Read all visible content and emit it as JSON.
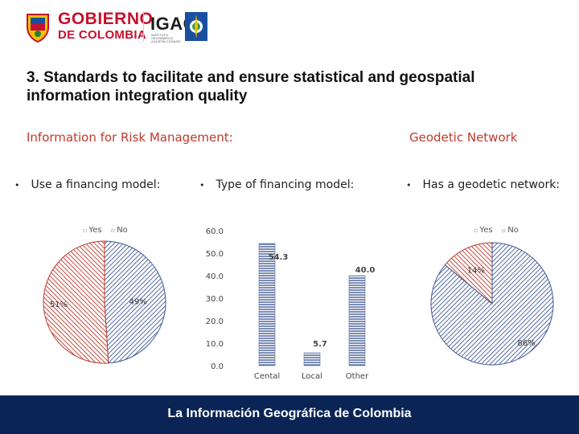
{
  "header": {
    "gobierno_line1": "GOBIERNO",
    "gobierno_line2": "DE COLOMBIA",
    "igac": "IGAC",
    "igac_subtitle": "INSTITUTO GEOGRÁFICO AGUSTÍN CODAZZI"
  },
  "title": "3. Standards to facilitate and ensure statistical and geospatial information integration quality",
  "sections": {
    "risk_heading": "Information for  Risk Management:",
    "geodetic_heading": "Geodetic Network"
  },
  "bullets": {
    "financing_model": "Use a  financing model:",
    "type_financing": "Type of financing model:",
    "geodetic_network": "Has a geodetic network:"
  },
  "legend": {
    "yes": "Yes",
    "no": "No"
  },
  "colors": {
    "yes_fill": "#3f5a99",
    "no_fill": "#c0392b",
    "bar_fill": "#5a6f9e",
    "footer": "#0b2456",
    "heading": "#c0392b"
  },
  "chart_data": [
    {
      "type": "pie",
      "legend": [
        "Yes",
        "No"
      ],
      "slices": [
        {
          "label": "Yes",
          "value": 49,
          "display": "49%"
        },
        {
          "label": "No",
          "value": 51,
          "display": "51%"
        }
      ]
    },
    {
      "type": "bar",
      "categories": [
        "Cental",
        "Local",
        "Other"
      ],
      "values": [
        54.3,
        5.7,
        40.0
      ],
      "value_labels": [
        "54.3",
        "5.7",
        "40.0"
      ],
      "yticks": [
        "0.0",
        "10.0",
        "20.0",
        "30.0",
        "40.0",
        "50.0",
        "60.0"
      ],
      "ylim": [
        0,
        60
      ],
      "grid": false
    },
    {
      "type": "pie",
      "legend": [
        "Yes",
        "No"
      ],
      "slices": [
        {
          "label": "Yes",
          "value": 86,
          "display": "86%"
        },
        {
          "label": "No",
          "value": 14,
          "display": "14%"
        }
      ]
    }
  ],
  "footer": "La Información Geográfica de Colombia"
}
